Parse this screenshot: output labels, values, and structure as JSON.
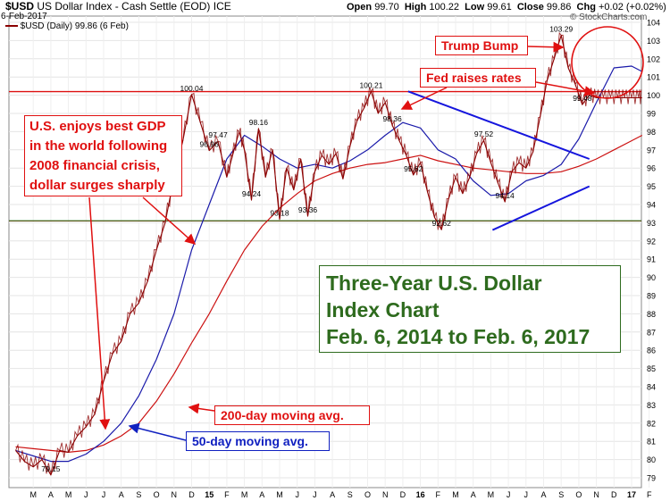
{
  "header": {
    "symbol": "$USD",
    "name": "US Dollar Index - Cash Settle (EOD)",
    "exchange": "ICE",
    "date": "6-Feb-2017",
    "open_label": "Open",
    "open": "99.70",
    "high_label": "High",
    "high": "100.22",
    "low_label": "Low",
    "low": "99.61",
    "close_label": "Close",
    "close": "99.86",
    "chg_label": "Chg",
    "chg": "+0.02 (+0.02%)",
    "watermark": "© StockCharts.com",
    "legend": "$USD (Daily) 99.86 (6 Feb)"
  },
  "annotations": {
    "trump_bump": "Trump Bump",
    "fed_raises": "Fed raises rates",
    "gdp_lines": [
      "U.S. enjoys best  GDP",
      "in the world following",
      "2008 financial crisis,",
      "dollar surges sharply"
    ],
    "ma200": "200-day moving avg.",
    "ma50": "50-day moving avg.",
    "title_lines": [
      "Three-Year U.S. Dollar",
      "Index Chart",
      "Feb. 6, 2014 to Feb. 6, 2017"
    ]
  },
  "colors": {
    "price": "#8b0000",
    "ma50": "#1a1aaa",
    "ma200": "#cc1111",
    "resistance": "#dd1111",
    "support": "#1f7a1f",
    "trend": "#1515dd",
    "annotation_red": "#e01010",
    "annotation_blue": "#1020c0",
    "title_green": "#2e6b1e"
  },
  "chart_data": {
    "type": "line",
    "ylim": [
      78,
      104
    ],
    "yticks": [
      79,
      80,
      81,
      82,
      83,
      84,
      85,
      86,
      87,
      88,
      89,
      90,
      91,
      92,
      93,
      94,
      95,
      96,
      97,
      98,
      99,
      100,
      101,
      102,
      103,
      104
    ],
    "x_labels": [
      "M",
      "A",
      "M",
      "J",
      "J",
      "A",
      "S",
      "O",
      "N",
      "D",
      "15",
      "F",
      "M",
      "A",
      "M",
      "J",
      "J",
      "A",
      "S",
      "O",
      "N",
      "D",
      "16",
      "F",
      "M",
      "A",
      "M",
      "J",
      "J",
      "A",
      "S",
      "O",
      "N",
      "D",
      "17",
      "F"
    ],
    "x_label_months": [
      1,
      2,
      3,
      4,
      5,
      6,
      7,
      8,
      9,
      10,
      11,
      12,
      13,
      14,
      15,
      16,
      17,
      18,
      19,
      20,
      21,
      22,
      23,
      24,
      25,
      26,
      27,
      28,
      29,
      30,
      31,
      32,
      33,
      34,
      35,
      36
    ],
    "series": [
      {
        "name": "$USD (Daily)",
        "x_month": [
          0,
          0.5,
          1.0,
          1.5,
          2.0,
          2.5,
          3.0,
          3.5,
          4.0,
          4.5,
          5.0,
          5.5,
          6.0,
          6.5,
          7.0,
          7.5,
          8.0,
          8.5,
          9.0,
          9.5,
          10.0,
          10.5,
          11.0,
          11.5,
          12.0,
          12.3,
          12.7,
          13.0,
          13.4,
          13.8,
          14.2,
          14.6,
          15.0,
          15.4,
          15.8,
          16.2,
          16.6,
          17.0,
          17.4,
          17.8,
          18.2,
          18.6,
          19.0,
          19.4,
          19.8,
          20.2,
          20.6,
          21.0,
          21.4,
          21.8,
          22.2,
          22.6,
          23.0,
          23.4,
          23.8,
          24.2,
          24.6,
          25.0,
          25.4,
          25.8,
          26.2,
          26.6,
          27.0,
          27.4,
          27.8,
          28.2,
          28.6,
          29.0,
          29.4,
          29.8,
          30.2,
          30.6,
          31.0,
          31.4,
          31.8,
          32.2,
          32.6,
          33.0,
          33.4,
          33.8,
          34.2,
          34.6,
          35.0,
          35.4,
          35.6
        ],
        "values": [
          80.5,
          79.9,
          79.6,
          80.0,
          79.15,
          80.5,
          80.4,
          81.3,
          81.8,
          82.5,
          84.3,
          85.8,
          86.5,
          88.0,
          88.6,
          89.8,
          91.5,
          93.0,
          95.5,
          97.5,
          100.04,
          98.5,
          96.96,
          97.47,
          95.5,
          96.6,
          98.0,
          97.0,
          94.24,
          98.16,
          95.5,
          97.0,
          93.18,
          96.0,
          94.8,
          96.5,
          93.36,
          95.8,
          96.7,
          96.2,
          96.8,
          95.4,
          97.2,
          98.6,
          99.3,
          100.21,
          99.0,
          99.6,
          98.36,
          97.5,
          96.7,
          95.62,
          96.3,
          94.7,
          93.3,
          92.62,
          94.3,
          95.5,
          94.6,
          95.5,
          96.8,
          97.52,
          96.3,
          95.2,
          94.14,
          95.8,
          96.3,
          96.0,
          96.9,
          98.8,
          100.8,
          102.0,
          103.29,
          101.5,
          100.6,
          99.48,
          100.0,
          99.86,
          99.86,
          99.86,
          99.86,
          99.86,
          99.86,
          99.86,
          99.86
        ]
      },
      {
        "name": "50-day moving avg.",
        "x_month": [
          0,
          1,
          2,
          3,
          4,
          5,
          6,
          7,
          8,
          9,
          10,
          11,
          12,
          13,
          14,
          15,
          16,
          17,
          18,
          19,
          20,
          21,
          22,
          23,
          24,
          25,
          26,
          27,
          28,
          29,
          30,
          31,
          32,
          33,
          34,
          35,
          35.6
        ],
        "values": [
          80.5,
          80.2,
          79.9,
          79.9,
          80.3,
          81.0,
          82.0,
          83.5,
          85.5,
          88.0,
          91.5,
          94.0,
          96.5,
          97.8,
          97.2,
          96.5,
          96.0,
          96.2,
          96.0,
          96.4,
          97.0,
          97.8,
          98.5,
          98.2,
          97.0,
          96.5,
          95.3,
          94.5,
          94.6,
          95.3,
          95.6,
          96.2,
          97.6,
          99.6,
          101.5,
          101.6,
          101.3
        ]
      },
      {
        "name": "200-day moving avg.",
        "x_month": [
          0,
          1,
          2,
          3,
          4,
          5,
          6,
          7,
          8,
          9,
          10,
          11,
          12,
          13,
          14,
          15,
          16,
          17,
          18,
          19,
          20,
          21,
          22,
          23,
          24,
          25,
          26,
          27,
          28,
          29,
          30,
          31,
          32,
          33,
          34,
          35,
          35.6
        ],
        "values": [
          80.7,
          80.6,
          80.5,
          80.4,
          80.5,
          80.8,
          81.3,
          82.0,
          83.2,
          84.7,
          86.4,
          88.0,
          89.8,
          91.5,
          92.8,
          93.8,
          94.6,
          95.3,
          95.7,
          96.0,
          96.2,
          96.3,
          96.5,
          96.7,
          96.4,
          96.2,
          96.0,
          95.9,
          95.8,
          95.7,
          95.7,
          95.8,
          96.1,
          96.5,
          97.0,
          97.5,
          97.8
        ]
      }
    ],
    "reference_lines": {
      "resistance": 100.2,
      "support": 93.1
    },
    "trendlines": [
      {
        "x_month": [
          22.3,
          32.6
        ],
        "values": [
          100.21,
          96.5
        ]
      },
      {
        "x_month": [
          27.1,
          32.6
        ],
        "values": [
          92.6,
          95.0
        ]
      }
    ],
    "value_labels": [
      {
        "text": "79.15",
        "x_month": 2.0,
        "value": 79.15
      },
      {
        "text": "100.04",
        "x_month": 10.0,
        "value": 100.04
      },
      {
        "text": "96.96",
        "x_month": 11.0,
        "value": 96.96
      },
      {
        "text": "97.47",
        "x_month": 11.5,
        "value": 97.47
      },
      {
        "text": "98.16",
        "x_month": 13.8,
        "value": 98.16
      },
      {
        "text": "94.24",
        "x_month": 13.4,
        "value": 94.24
      },
      {
        "text": "93.18",
        "x_month": 15.0,
        "value": 93.18
      },
      {
        "text": "93.36",
        "x_month": 16.6,
        "value": 93.36
      },
      {
        "text": "100.21",
        "x_month": 20.2,
        "value": 100.21
      },
      {
        "text": "98.36",
        "x_month": 21.4,
        "value": 98.36
      },
      {
        "text": "95.62",
        "x_month": 22.6,
        "value": 95.62
      },
      {
        "text": "92.62",
        "x_month": 24.2,
        "value": 92.62
      },
      {
        "text": "97.52",
        "x_month": 26.6,
        "value": 97.52
      },
      {
        "text": "94.14",
        "x_month": 27.8,
        "value": 94.14
      },
      {
        "text": "103.29",
        "x_month": 31.0,
        "value": 103.29
      },
      {
        "text": "99.48",
        "x_month": 32.2,
        "value": 99.48
      }
    ]
  }
}
